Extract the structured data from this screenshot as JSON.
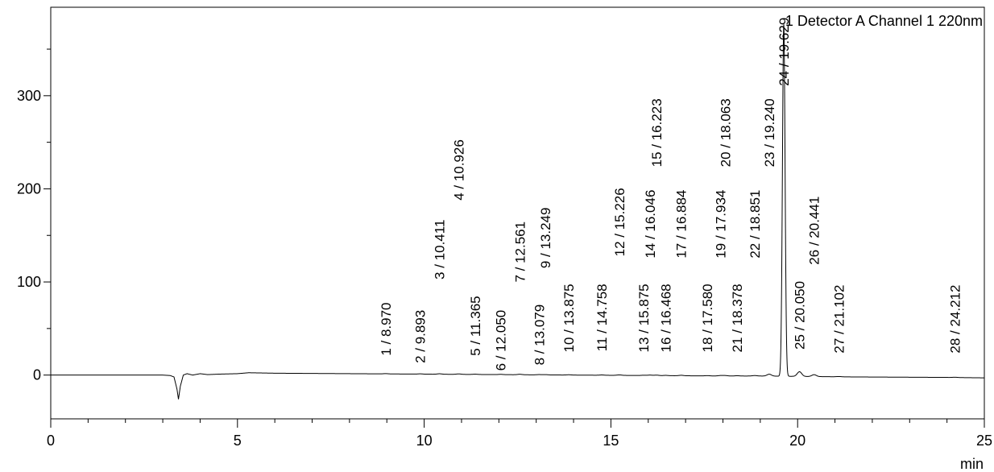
{
  "chart_data": {
    "type": "line",
    "title": "1 Detector A Channel 1 220nm",
    "xlabel": "min",
    "ylabel": "",
    "xlim": [
      0,
      25
    ],
    "ylim": [
      -47,
      395
    ],
    "xticks": [
      0,
      5,
      10,
      15,
      20,
      25
    ],
    "xtick_labels": [
      "0",
      "5",
      "10",
      "15",
      "20",
      "25"
    ],
    "yticks": [
      0,
      100,
      200,
      300
    ],
    "ytick_labels": [
      "0",
      "100",
      "200",
      "300"
    ],
    "grid": false,
    "legend": "none",
    "line_color": "#000000",
    "baseline_points": [
      [
        0,
        0
      ],
      [
        3.0,
        0
      ],
      [
        3.2,
        -0.5
      ],
      [
        3.3,
        -2
      ],
      [
        3.38,
        -15
      ],
      [
        3.42,
        -26
      ],
      [
        3.47,
        -12
      ],
      [
        3.55,
        0
      ],
      [
        3.65,
        1.5
      ],
      [
        3.8,
        0
      ],
      [
        4.0,
        1.5
      ],
      [
        4.2,
        0.5
      ],
      [
        4.5,
        1
      ],
      [
        5.0,
        1.5
      ],
      [
        5.3,
        2.5
      ],
      [
        6.0,
        2
      ],
      [
        8.0,
        1.5
      ],
      [
        10.0,
        1
      ],
      [
        12.0,
        0.5
      ],
      [
        14.0,
        0
      ],
      [
        16.0,
        -0.5
      ],
      [
        18.0,
        -1
      ],
      [
        19.0,
        -1
      ],
      [
        21.5,
        -2
      ],
      [
        24.0,
        -2.5
      ],
      [
        25.0,
        -3
      ]
    ],
    "peaks": [
      {
        "label": "1 / 8.970",
        "rt": 8.97,
        "height": 0.3,
        "label_top": 78
      },
      {
        "label": "2 / 9.893",
        "rt": 9.893,
        "height": 0.3,
        "label_top": 70
      },
      {
        "label": "3 / 10.411",
        "rt": 10.411,
        "height": 0.5,
        "label_top": 167
      },
      {
        "label": "4 / 10.926",
        "rt": 10.926,
        "height": 0.5,
        "label_top": 253
      },
      {
        "label": "5 / 11.365",
        "rt": 11.365,
        "height": 0.3,
        "label_top": 85
      },
      {
        "label": "6 / 12.050",
        "rt": 12.05,
        "height": 0.3,
        "label_top": 70
      },
      {
        "label": "7 / 12.561",
        "rt": 12.561,
        "height": 0.5,
        "label_top": 165
      },
      {
        "label": "8 / 13.079",
        "rt": 13.079,
        "height": 0.3,
        "label_top": 76
      },
      {
        "label": "9 / 13.249",
        "rt": 13.249,
        "height": 0.3,
        "label_top": 180
      },
      {
        "label": "10 / 13.875",
        "rt": 13.875,
        "height": 0.3,
        "label_top": 98
      },
      {
        "label": "11 / 14.758",
        "rt": 14.758,
        "height": 0.3,
        "label_top": 98
      },
      {
        "label": "12 / 15.226",
        "rt": 15.226,
        "height": 0.5,
        "label_top": 201
      },
      {
        "label": "13 / 15.875",
        "rt": 15.875,
        "height": 0.3,
        "label_top": 98
      },
      {
        "label": "14 / 16.046",
        "rt": 16.046,
        "height": 0.5,
        "label_top": 199
      },
      {
        "label": "15 / 16.223",
        "rt": 16.223,
        "height": 0.5,
        "label_top": 297
      },
      {
        "label": "16 / 16.468",
        "rt": 16.468,
        "height": 0.3,
        "label_top": 98
      },
      {
        "label": "17 / 16.884",
        "rt": 16.884,
        "height": 0.5,
        "label_top": 199
      },
      {
        "label": "18 / 17.580",
        "rt": 17.58,
        "height": 0.3,
        "label_top": 98
      },
      {
        "label": "19 / 17.934",
        "rt": 17.934,
        "height": 0.5,
        "label_top": 199
      },
      {
        "label": "20 / 18.063",
        "rt": 18.063,
        "height": 0.5,
        "label_top": 297
      },
      {
        "label": "21 / 18.378",
        "rt": 18.378,
        "height": 0.3,
        "label_top": 98
      },
      {
        "label": "22 / 18.851",
        "rt": 18.851,
        "height": 0.5,
        "label_top": 199
      },
      {
        "label": "23 / 19.240",
        "rt": 19.24,
        "height": 2,
        "label_top": 297
      },
      {
        "label": "24 / 19.629",
        "rt": 19.629,
        "height": 378,
        "label_top": 384
      },
      {
        "label": "25 / 20.050",
        "rt": 20.05,
        "height": 5,
        "label_top": 101
      },
      {
        "label": "26 / 20.441",
        "rt": 20.441,
        "height": 2,
        "label_top": 192
      },
      {
        "label": "27 / 21.102",
        "rt": 21.102,
        "height": 0.3,
        "label_top": 97
      },
      {
        "label": "28 / 24.212",
        "rt": 24.212,
        "height": 0.3,
        "label_top": 97
      }
    ]
  }
}
